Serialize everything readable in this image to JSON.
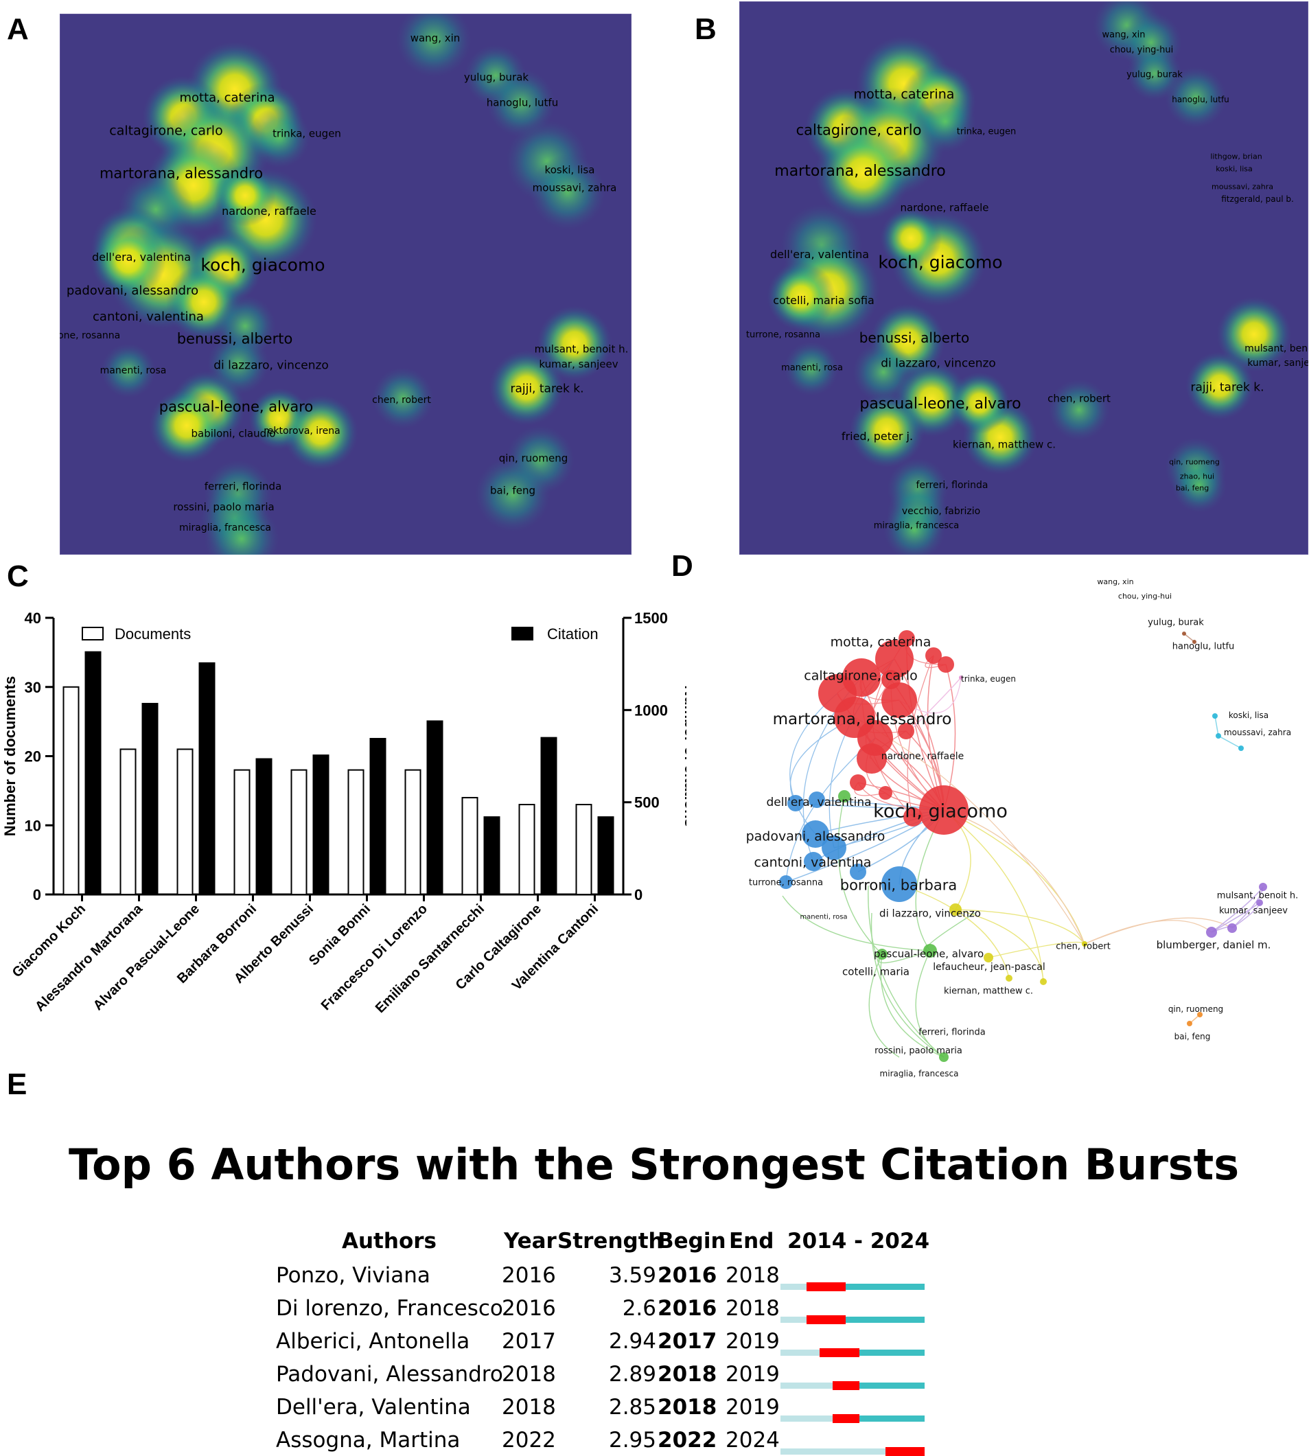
{
  "panels": {
    "a": "A",
    "b": "B",
    "c": "C",
    "d": "D",
    "e": "E"
  },
  "density_a": {
    "labels": [
      "wang, xin",
      "yulug, burak",
      "hanoglu, lutfu",
      "motta, caterina",
      "caltagirone, carlo",
      "trinka, eugen",
      "martorana, alessandro",
      "koski, lisa",
      "moussavi, zahra",
      "nardone, raffaele",
      "dell'era, valentina",
      "koch, giacomo",
      "padovani, alessandro",
      "cantoni, valentina",
      "turrone, rosanna",
      "benussi, alberto",
      "mulsant, benoit h.",
      "kumar, sanjeev",
      "manenti, rosa",
      "di lazzaro, vincenzo",
      "rajji, tarek k.",
      "chen, robert",
      "pascual-leone, alvaro",
      "babiloni, claudio",
      "rektorova, irena",
      "qin, ruomeng",
      "ferreri, florinda",
      "bai, feng",
      "rossini, paolo maria",
      "miraglia, francesca"
    ]
  },
  "density_b": {
    "labels": [
      "wang, xin",
      "chou, ying-hui",
      "yulug, burak",
      "motta, caterina",
      "hanoglu, lutfu",
      "caltagirone, carlo",
      "trinka, eugen",
      "lithgow, brian",
      "koski, lisa",
      "martorana, alessandro",
      "moussavi, zahra",
      "fitzgerald, paul b.",
      "nardone, raffaele",
      "dell'era, valentina",
      "koch, giacomo",
      "cotelli, maria sofia",
      "turrone, rosanna",
      "benussi, alberto",
      "mulsant, benoit h.",
      "kumar, sanjeev",
      "manenti, rosa",
      "di lazzaro, vincenzo",
      "rajji, tarek k.",
      "chen, robert",
      "pascual-leone, alvaro",
      "fried, peter j.",
      "kiernan, matthew c.",
      "qin, ruomeng",
      "zhao, hui",
      "bai, feng",
      "ferreri, florinda",
      "vecchio, fabrizio",
      "miraglia, francesca"
    ]
  },
  "chart_data": {
    "type": "bar",
    "categories": [
      "Giacomo Koch",
      "Alessandro Martorana",
      "Alvaro Pascual-Leone",
      "Barbara Borroni",
      "Alberto Benussi",
      "Sonia Bonni",
      "Francesco Di Lorenzo",
      "Emiliano Santarnecchi",
      "Carlo Caltagirone",
      "Valentina Cantoni"
    ],
    "series": [
      {
        "name": "Documents",
        "axis": "left",
        "color": "#ffffff",
        "values": [
          30,
          21,
          21,
          18,
          18,
          18,
          18,
          14,
          13,
          13
        ]
      },
      {
        "name": "Citation",
        "axis": "right",
        "color": "#000000",
        "values": [
          1315,
          1035,
          1255,
          735,
          755,
          845,
          940,
          420,
          850,
          420
        ]
      }
    ],
    "ylabel": "Number of documents",
    "y2label": "Number of citations",
    "ylim": [
      0,
      40
    ],
    "y2lim": [
      0,
      1500
    ],
    "yticks": [
      "0",
      "10",
      "20",
      "30",
      "40"
    ],
    "y2ticks": [
      "0",
      "500",
      "1000",
      "1500"
    ],
    "legend_position": "top"
  },
  "network_d": {
    "labels": [
      "wang, xin",
      "chou, ying-hui",
      "yulug, burak",
      "hanoglu, lutfu",
      "motta, caterina",
      "caltagirone, carlo",
      "trinka, eugen",
      "martorana, alessandro",
      "koski, lisa",
      "moussavi, zahra",
      "nardone, raffaele",
      "dell'era, valentina",
      "koch, giacomo",
      "padovani, alessandro",
      "cantoni, valentina",
      "turrone, rosanna",
      "borroni, barbara",
      "mulsant, benoit h.",
      "kumar, sanjeev",
      "di lazzaro, vincenzo",
      "manenti, rosa",
      "chen, robert",
      "blumberger, daniel m.",
      "pascual-leone, alvaro",
      "lefaucheur, jean-pascal",
      "cotelli, maria",
      "kiernan, matthew c.",
      "qin, ruomeng",
      "bai, feng",
      "ferreri, florinda",
      "rossini, paolo maria",
      "miraglia, francesca"
    ]
  },
  "bursts": {
    "title": "Top 6 Authors with the Strongest Citation Bursts",
    "headers": {
      "authors": "Authors",
      "year": "Year",
      "strength": "Strength",
      "begin": "Begin",
      "end": "End",
      "range": "2014 - 2024"
    },
    "range_start": 2014,
    "range_end": 2024,
    "colors": {
      "burst": "#ff0000",
      "active": "#3cbfc2",
      "inactive": "#bfe3e6"
    },
    "rows": [
      {
        "author": "Ponzo, Viviana",
        "year": "2016",
        "strength": "3.59",
        "begin": "2016",
        "end": "2018"
      },
      {
        "author": "Di lorenzo, Francesco",
        "year": "2016",
        "strength": "2.6",
        "begin": "2016",
        "end": "2018"
      },
      {
        "author": "Alberici, Antonella",
        "year": "2017",
        "strength": "2.94",
        "begin": "2017",
        "end": "2019"
      },
      {
        "author": "Padovani, Alessandro",
        "year": "2018",
        "strength": "2.89",
        "begin": "2018",
        "end": "2019"
      },
      {
        "author": "Dell'era, Valentina",
        "year": "2018",
        "strength": "2.85",
        "begin": "2018",
        "end": "2019"
      },
      {
        "author": "Assogna, Martina",
        "year": "2022",
        "strength": "2.95",
        "begin": "2022",
        "end": "2024"
      }
    ]
  }
}
